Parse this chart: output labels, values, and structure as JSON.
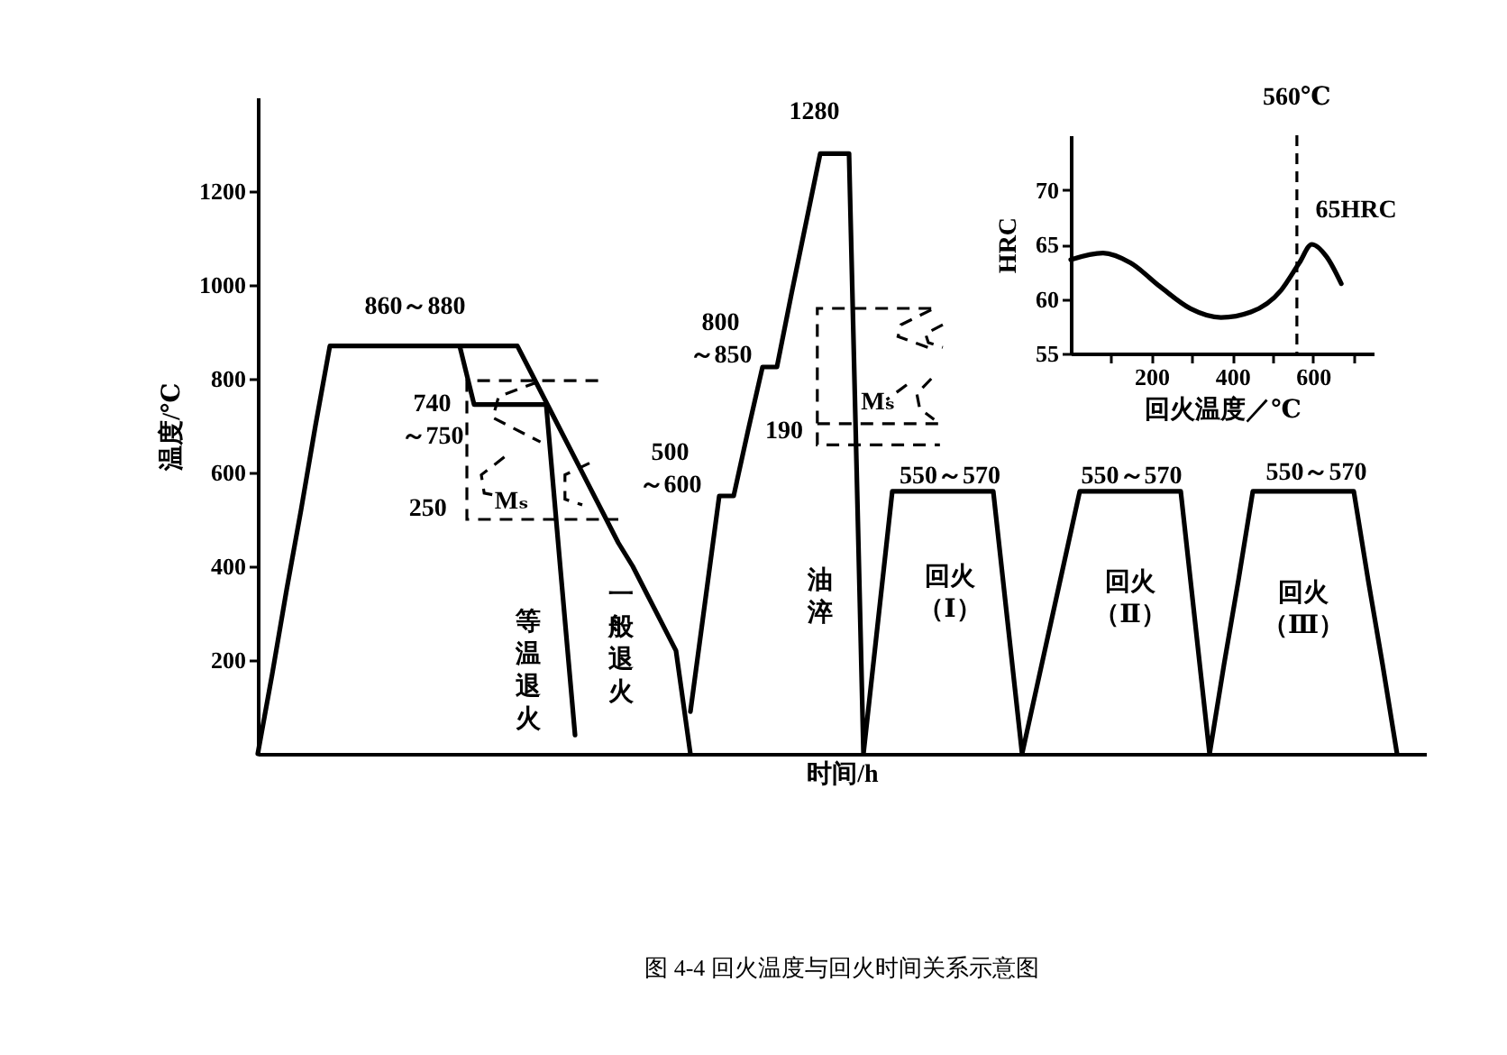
{
  "chart_data": [
    {
      "type": "line",
      "title": "图 4-4 回火温度与回火时间关系示意图",
      "xlabel": "时间/h",
      "ylabel": "温度/℃",
      "categories": [
        null,
        null,
        null,
        null,
        null,
        null,
        null,
        null,
        null,
        null,
        null,
        null,
        null,
        null,
        null,
        null,
        null,
        null,
        null,
        null,
        null,
        null,
        null,
        null,
        null,
        null,
        null,
        null,
        null,
        null,
        null,
        null,
        null,
        null,
        null,
        null,
        null,
        null,
        null,
        null,
        null,
        null,
        null,
        null,
        null,
        null,
        null,
        null,
        null,
        null,
        null,
        null,
        null,
        null,
        null,
        null,
        null,
        null,
        null,
        null,
        null,
        null,
        null,
        null,
        null,
        null,
        null,
        null,
        null,
        null,
        null,
        null,
        null,
        null,
        null,
        null,
        null,
        null,
        null,
        null,
        null,
        null
      ],
      "ylim": [
        0,
        1400
      ],
      "yticks": [
        200,
        400,
        600,
        800,
        1000,
        1200
      ],
      "tick_labels": "y",
      "grid": false,
      "legend": false,
      "marker": "none",
      "line_style": "solid",
      "series": [
        {
          "color": "#000000",
          "values": [
            0,
            170,
            350,
            520,
            700,
            870,
            870,
            870,
            870,
            870,
            870,
            870,
            870,
            870,
            870,
            870,
            870,
            870,
            870,
            810,
            750,
            690,
            630,
            570,
            510,
            450,
            400,
            340,
            280,
            220,
            0,
            null,
            null,
            null,
            null,
            null,
            null,
            null,
            null,
            null,
            null,
            null,
            null,
            null,
            null,
            null,
            null,
            null,
            null,
            null,
            null,
            null,
            null,
            null,
            null,
            null,
            null,
            null,
            null,
            null,
            null,
            null,
            null,
            null,
            null,
            null,
            null,
            null,
            null,
            null,
            null,
            null,
            null,
            null,
            null,
            null,
            null,
            null,
            null,
            null,
            null,
            null
          ]
        },
        {
          "color": "#000000",
          "values": [
            null,
            null,
            null,
            null,
            null,
            null,
            null,
            null,
            null,
            null,
            null,
            null,
            null,
            null,
            870,
            745,
            745,
            745,
            745,
            745,
            745,
            390,
            40,
            null,
            null,
            null,
            null,
            null,
            null,
            null,
            null,
            null,
            null,
            null,
            null,
            null,
            null,
            null,
            null,
            null,
            null,
            null,
            null,
            null,
            null,
            null,
            null,
            null,
            null,
            null,
            null,
            null,
            null,
            null,
            null,
            null,
            null,
            null,
            null,
            null,
            null,
            null,
            null,
            null,
            null,
            null,
            null,
            null,
            null,
            null,
            null,
            null,
            null,
            null,
            null,
            null,
            null,
            null,
            null,
            null,
            null,
            null
          ]
        },
        {
          "color": "#000000",
          "values": [
            null,
            null,
            null,
            null,
            null,
            null,
            null,
            null,
            null,
            null,
            null,
            null,
            null,
            null,
            null,
            null,
            null,
            null,
            null,
            null,
            null,
            null,
            null,
            null,
            null,
            null,
            null,
            null,
            null,
            null,
            90,
            320,
            550,
            550,
            690,
            825,
            825,
            980,
            1130,
            1280,
            1280,
            1280,
            0,
            280,
            560,
            560,
            560,
            560,
            560,
            560,
            560,
            560,
            280,
            0,
            140,
            280,
            420,
            560,
            560,
            560,
            560,
            560,
            560,
            560,
            560,
            280,
            0,
            190,
            370,
            560,
            560,
            560,
            560,
            560,
            560,
            560,
            560,
            370,
            190,
            0,
            null,
            null
          ]
        }
      ],
      "annotations": [
        "860～880",
        "740\n～750",
        "250",
        "Mₛ",
        "等温退火",
        "一般退火",
        "500\n～600",
        "800\n～850",
        "1280",
        "190",
        "Mₛ",
        "油淬",
        "550～570",
        "550～570",
        "550～570",
        "回火（Ⅰ）",
        "回火（Ⅱ）",
        "回火（Ⅲ）"
      ]
    },
    {
      "type": "line",
      "xlabel": "回火温度／℃",
      "ylabel": "HRC",
      "x": [
        0,
        80,
        148,
        222,
        297,
        372,
        446,
        521,
        566,
        597,
        633,
        670
      ],
      "series": [
        {
          "color": "#000000",
          "values": [
            63.6,
            64.2,
            63.3,
            61.1,
            59.1,
            58.3,
            58.8,
            60.8,
            63.3,
            65.0,
            63.9,
            61.4
          ]
        }
      ],
      "xlim": [
        0,
        750
      ],
      "ylim": [
        55,
        75
      ],
      "xticks": [
        {
          "value": 100,
          "label": null
        },
        200,
        {
          "value": 300,
          "label": null
        },
        400,
        {
          "value": 500,
          "label": null
        },
        600,
        {
          "value": 700,
          "label": null
        }
      ],
      "yticks": [
        55,
        60,
        65,
        70
      ],
      "ref_lines": [
        {
          "axis": "x",
          "value": 560,
          "label": "560℃",
          "line_style": "dashed"
        }
      ],
      "annotations": [
        {
          "text": "65HRC",
          "x": 597,
          "y": 65
        }
      ],
      "grid": false,
      "legend": false,
      "marker": "none",
      "line_style": "solid"
    }
  ]
}
